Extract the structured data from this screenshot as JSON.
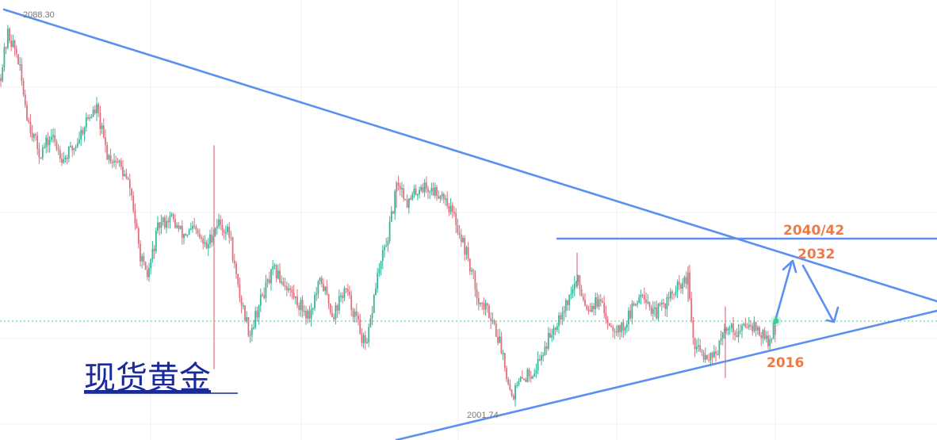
{
  "chart_data": {
    "type": "candlestick",
    "title": "现货黄金",
    "price_range": [
      2001.74,
      2088.3
    ],
    "high_marker": "2088.30",
    "low_marker": "2001.74",
    "levels": {
      "resistance_high": "2040/42",
      "resistance_mid": "2032",
      "support": "2016"
    },
    "colors": {
      "up": "#35b59a",
      "down": "#e0707e",
      "lines": "#5b8ff0",
      "labels": "#f07a45",
      "title": "#1a2a9a",
      "current_marker": "#3fd08a"
    },
    "series": [
      {
        "x": 0,
        "y": 2075
      },
      {
        "x": 10,
        "y": 2085
      },
      {
        "x": 22,
        "y": 2080
      },
      {
        "x": 35,
        "y": 2066
      },
      {
        "x": 50,
        "y": 2058
      },
      {
        "x": 65,
        "y": 2062
      },
      {
        "x": 80,
        "y": 2057
      },
      {
        "x": 95,
        "y": 2060
      },
      {
        "x": 110,
        "y": 2066
      },
      {
        "x": 122,
        "y": 2068
      },
      {
        "x": 135,
        "y": 2058
      },
      {
        "x": 150,
        "y": 2056
      },
      {
        "x": 165,
        "y": 2050
      },
      {
        "x": 175,
        "y": 2037
      },
      {
        "x": 185,
        "y": 2030
      },
      {
        "x": 200,
        "y": 2042
      },
      {
        "x": 215,
        "y": 2044
      },
      {
        "x": 230,
        "y": 2040
      },
      {
        "x": 245,
        "y": 2041
      },
      {
        "x": 260,
        "y": 2037
      },
      {
        "x": 275,
        "y": 2043
      },
      {
        "x": 290,
        "y": 2040
      },
      {
        "x": 300,
        "y": 2028
      },
      {
        "x": 315,
        "y": 2018
      },
      {
        "x": 330,
        "y": 2026
      },
      {
        "x": 345,
        "y": 2032
      },
      {
        "x": 360,
        "y": 2029
      },
      {
        "x": 375,
        "y": 2025
      },
      {
        "x": 390,
        "y": 2022
      },
      {
        "x": 405,
        "y": 2030
      },
      {
        "x": 420,
        "y": 2022
      },
      {
        "x": 435,
        "y": 2028
      },
      {
        "x": 450,
        "y": 2021
      },
      {
        "x": 462,
        "y": 2014
      },
      {
        "x": 475,
        "y": 2030
      },
      {
        "x": 490,
        "y": 2040
      },
      {
        "x": 502,
        "y": 2052
      },
      {
        "x": 515,
        "y": 2047
      },
      {
        "x": 530,
        "y": 2051
      },
      {
        "x": 545,
        "y": 2050
      },
      {
        "x": 560,
        "y": 2049
      },
      {
        "x": 575,
        "y": 2043
      },
      {
        "x": 590,
        "y": 2035
      },
      {
        "x": 605,
        "y": 2025
      },
      {
        "x": 620,
        "y": 2022
      },
      {
        "x": 635,
        "y": 2013
      },
      {
        "x": 645,
        "y": 2004
      },
      {
        "x": 660,
        "y": 2008
      },
      {
        "x": 675,
        "y": 2010
      },
      {
        "x": 690,
        "y": 2016
      },
      {
        "x": 705,
        "y": 2022
      },
      {
        "x": 718,
        "y": 2026
      },
      {
        "x": 728,
        "y": 2030
      },
      {
        "x": 740,
        "y": 2024
      },
      {
        "x": 755,
        "y": 2025
      },
      {
        "x": 770,
        "y": 2020
      },
      {
        "x": 785,
        "y": 2019
      },
      {
        "x": 800,
        "y": 2024
      },
      {
        "x": 810,
        "y": 2028
      },
      {
        "x": 825,
        "y": 2022
      },
      {
        "x": 840,
        "y": 2025
      },
      {
        "x": 855,
        "y": 2028
      },
      {
        "x": 868,
        "y": 2030
      },
      {
        "x": 875,
        "y": 2015
      },
      {
        "x": 890,
        "y": 2013
      },
      {
        "x": 905,
        "y": 2014
      },
      {
        "x": 918,
        "y": 2020
      },
      {
        "x": 932,
        "y": 2018
      },
      {
        "x": 945,
        "y": 2021
      },
      {
        "x": 958,
        "y": 2018
      },
      {
        "x": 970,
        "y": 2016
      },
      {
        "x": 980,
        "y": 2020
      }
    ]
  }
}
